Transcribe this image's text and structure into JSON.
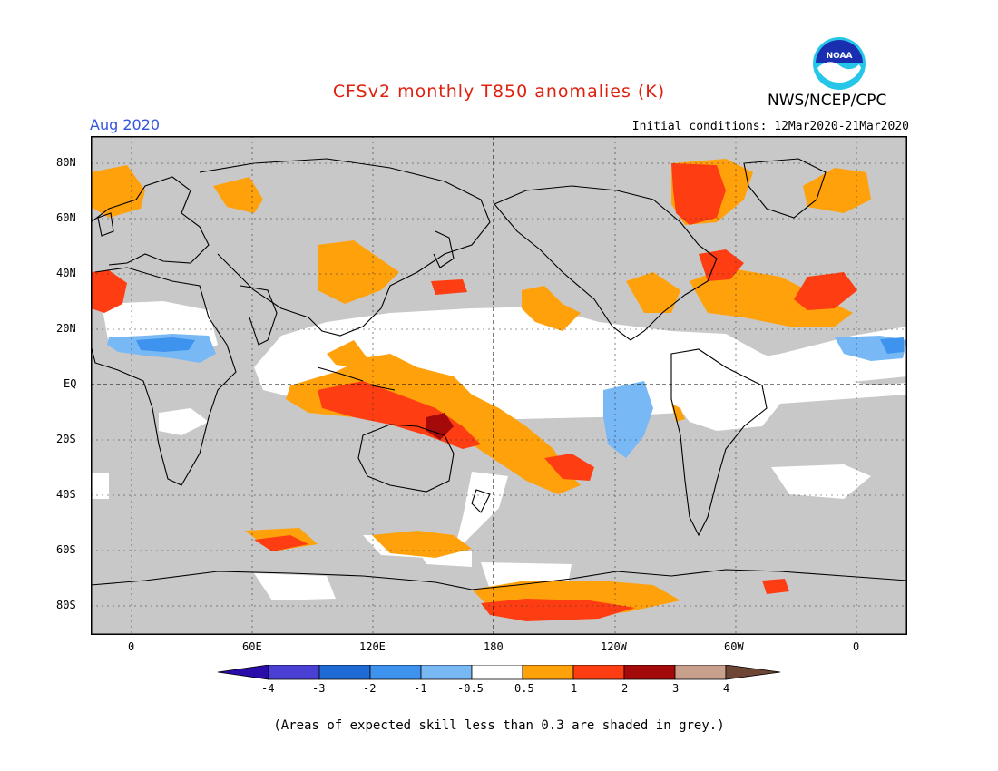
{
  "header": {
    "title": "CFSv2 monthly T850 anomalies (K)",
    "agency": "NWS/NCEP/CPC",
    "month": "Aug 2020",
    "initial_conditions": "Initial conditions: 12Mar2020-21Mar2020",
    "logo_text": "NOAA"
  },
  "colors": {
    "title": "#e0200e",
    "month": "#3355dd",
    "skill_grey": "#c8c8c8",
    "neutral": "#ffffff",
    "bins": [
      "#2a0da8",
      "#4a41d4",
      "#1e6bd6",
      "#3d93ee",
      "#78b9f5",
      "#ffffff",
      "#ffa10a",
      "#ff3d12",
      "#a50a0a",
      "#c9a08c",
      "#6e4636"
    ]
  },
  "map": {
    "lat_labels": [
      "80N",
      "60N",
      "40N",
      "20N",
      "EQ",
      "20S",
      "40S",
      "60S",
      "80S"
    ],
    "lon_labels": [
      "0",
      "60E",
      "120E",
      "180",
      "120W",
      "60W",
      "0"
    ]
  },
  "colorbar": {
    "labels": [
      "-4",
      "-3",
      "-2",
      "-1",
      "-0.5",
      "0.5",
      "1",
      "2",
      "3",
      "4"
    ]
  },
  "footnote": "(Areas of expected skill less than 0.3 are shaded in grey.)"
}
